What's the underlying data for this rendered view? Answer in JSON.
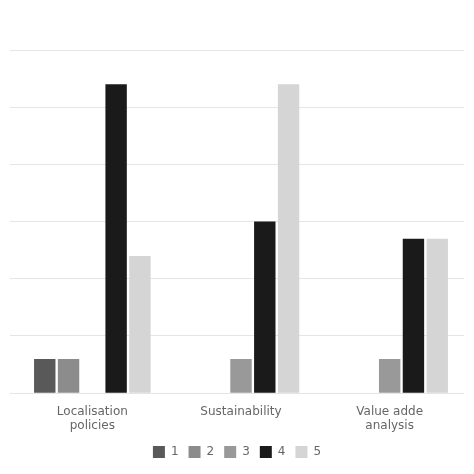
{
  "chart_data": {
    "type": "bar",
    "categories": [
      "Localisation\npolicies",
      "Sustainability",
      "Value adde\nanalysis"
    ],
    "series": [
      {
        "name": "1",
        "color": "#595959",
        "values": [
          1,
          0,
          0
        ]
      },
      {
        "name": "2",
        "color": "#8c8c8c",
        "values": [
          1,
          0,
          0
        ]
      },
      {
        "name": "3",
        "color": "#999999",
        "values": [
          0,
          1,
          1
        ]
      },
      {
        "name": "4",
        "color": "#1a1a1a",
        "values": [
          9,
          5,
          4.5
        ]
      },
      {
        "name": "5",
        "color": "#d5d5d5",
        "values": [
          4,
          9,
          4.5
        ]
      }
    ],
    "ylim": [
      0,
      10
    ],
    "yticks": [
      0,
      1.6666666666666667,
      3.3333333333333335,
      5,
      6.666666666666667,
      8.333333333333334,
      10
    ],
    "grid": true,
    "legend": "bottom",
    "tick_labels": "x"
  }
}
